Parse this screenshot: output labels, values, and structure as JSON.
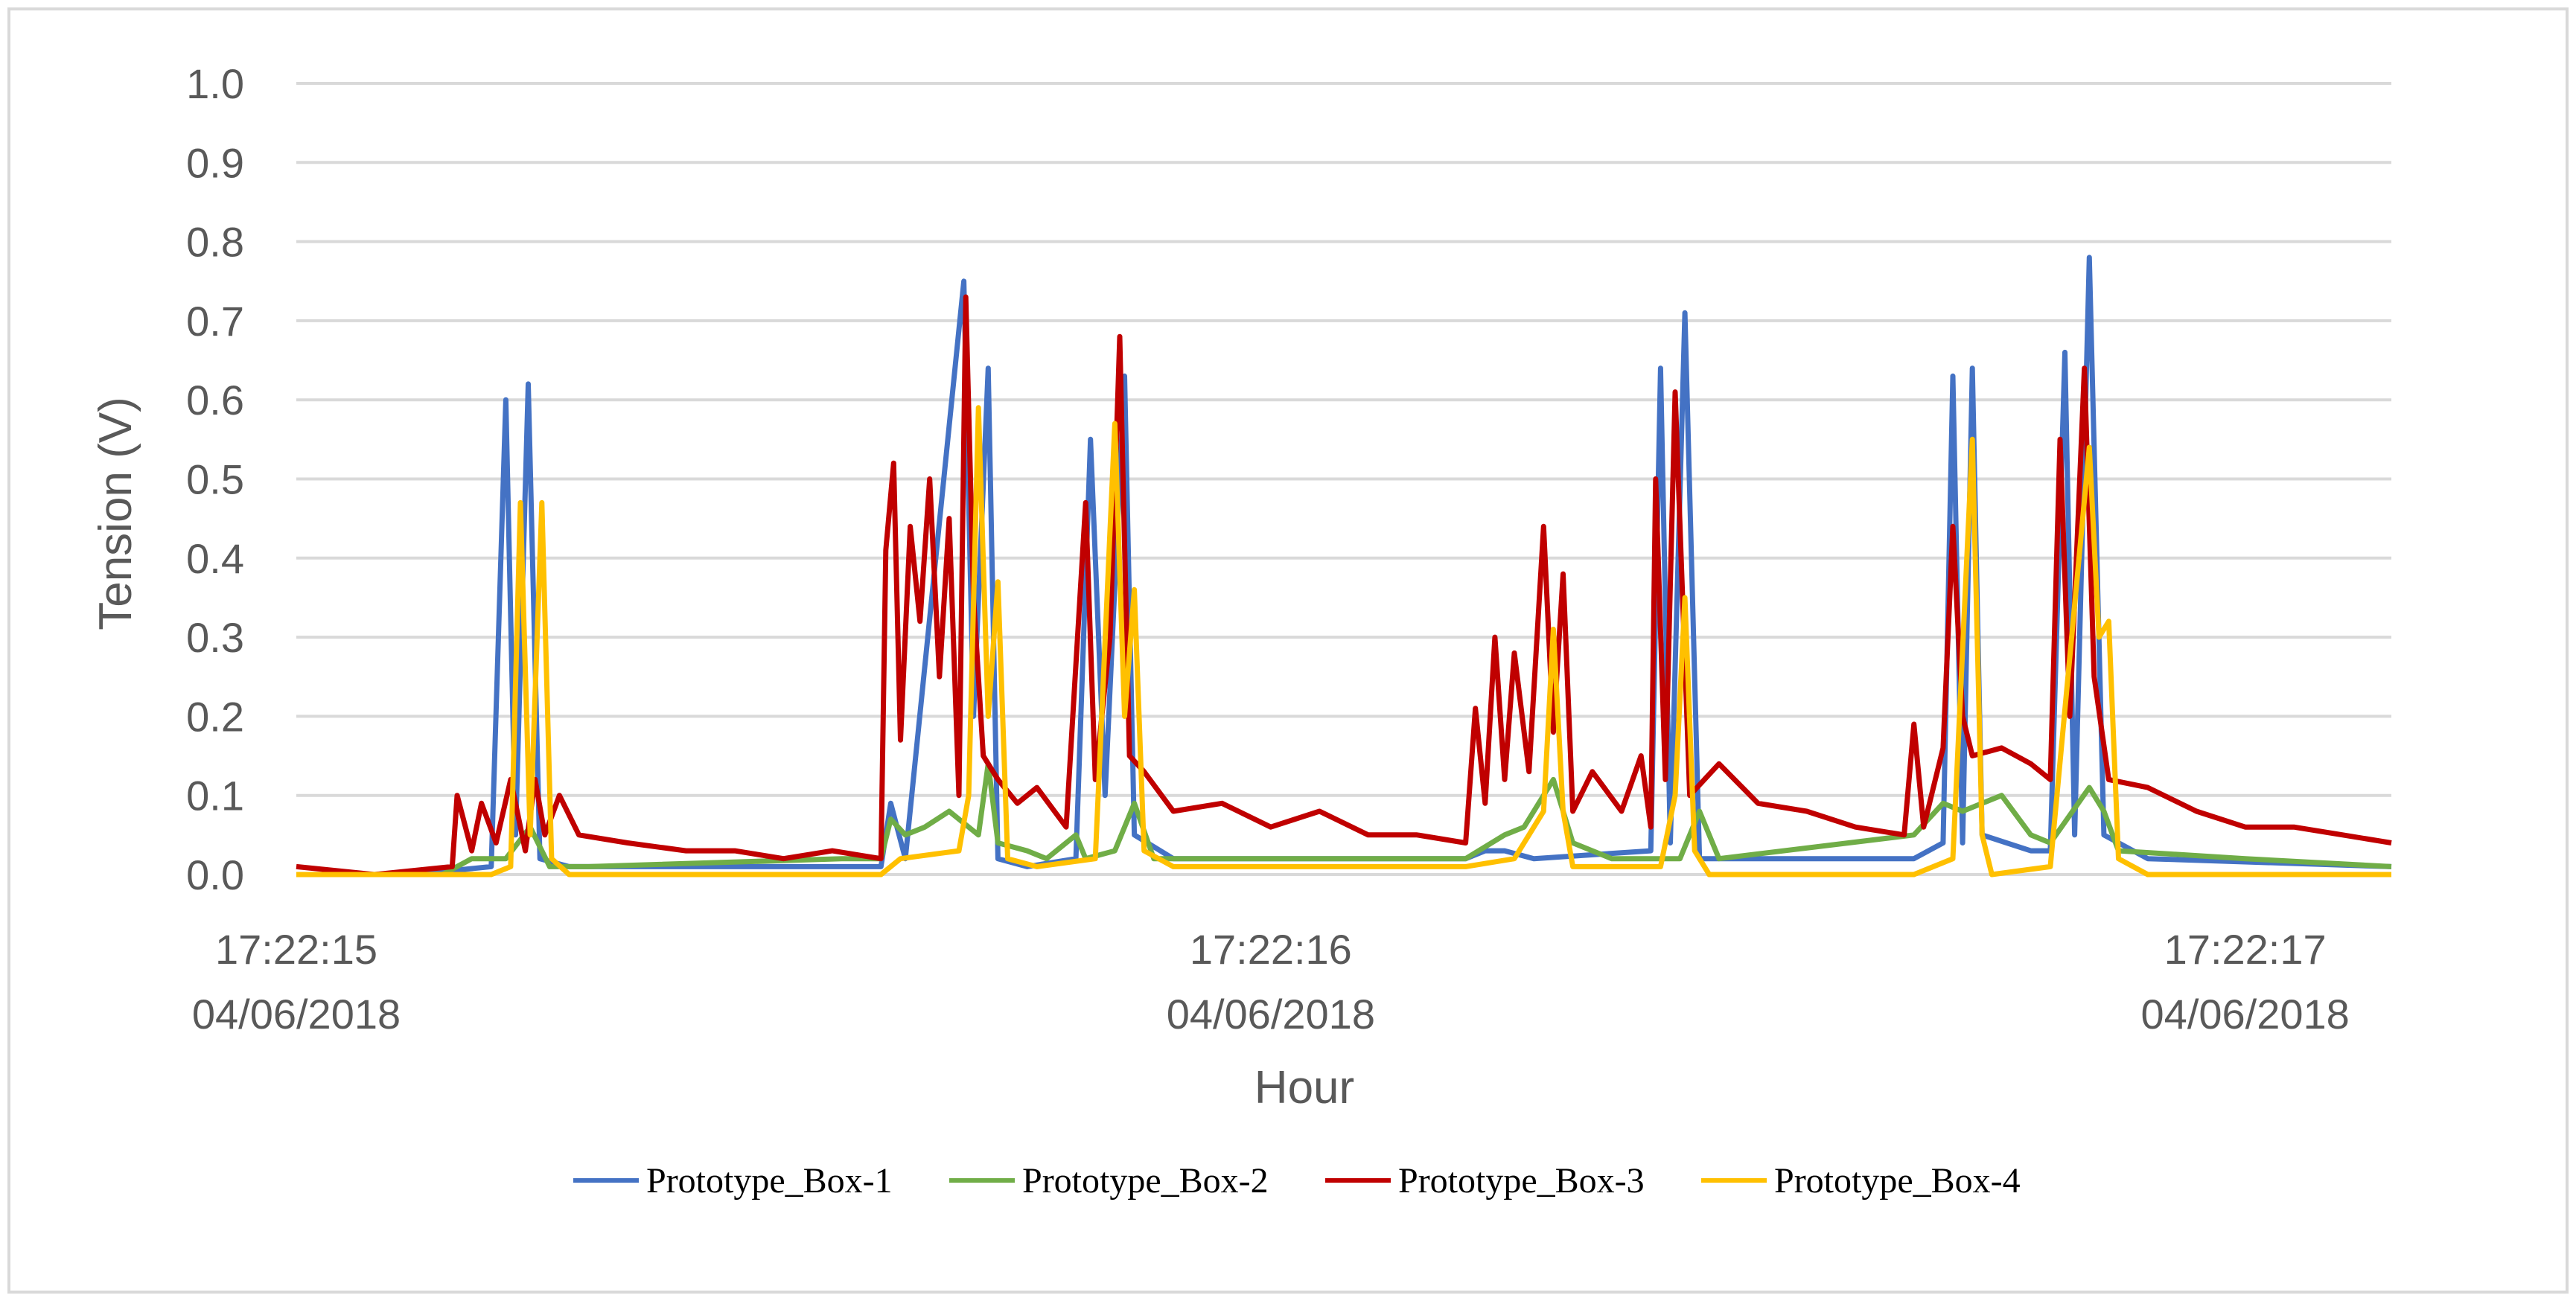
{
  "chart_data": {
    "type": "line",
    "ylabel": "Tension (V)",
    "xlabel": "Hour",
    "ylim": [
      0,
      1.0
    ],
    "yticks": [
      "0.0",
      "0.1",
      "0.2",
      "0.3",
      "0.4",
      "0.5",
      "0.6",
      "0.7",
      "0.8",
      "0.9",
      "1.0"
    ],
    "xlim": [
      0,
      2.15
    ],
    "xticks": [
      {
        "x": 0,
        "line1": "17:22:15",
        "line2": "04/06/2018"
      },
      {
        "x": 1,
        "line1": "17:22:16",
        "line2": "04/06/2018"
      },
      {
        "x": 2,
        "line1": "17:22:17",
        "line2": "04/06/2018"
      }
    ],
    "grid": true,
    "legend_position": "bottom",
    "series": [
      {
        "name": "Prototype_Box-1",
        "color": "#4472c4",
        "points": [
          [
            0,
            0.0
          ],
          [
            0.12,
            0.0
          ],
          [
            0.2,
            0.01
          ],
          [
            0.215,
            0.6
          ],
          [
            0.225,
            0.05
          ],
          [
            0.238,
            0.62
          ],
          [
            0.25,
            0.02
          ],
          [
            0.28,
            0.01
          ],
          [
            0.6,
            0.01
          ],
          [
            0.61,
            0.09
          ],
          [
            0.625,
            0.02
          ],
          [
            0.685,
            0.75
          ],
          [
            0.695,
            0.2
          ],
          [
            0.71,
            0.64
          ],
          [
            0.72,
            0.02
          ],
          [
            0.75,
            0.01
          ],
          [
            0.8,
            0.02
          ],
          [
            0.815,
            0.55
          ],
          [
            0.83,
            0.1
          ],
          [
            0.85,
            0.63
          ],
          [
            0.86,
            0.05
          ],
          [
            0.9,
            0.02
          ],
          [
            1.2,
            0.02
          ],
          [
            1.22,
            0.03
          ],
          [
            1.24,
            0.03
          ],
          [
            1.27,
            0.02
          ],
          [
            1.39,
            0.03
          ],
          [
            1.4,
            0.64
          ],
          [
            1.41,
            0.04
          ],
          [
            1.425,
            0.71
          ],
          [
            1.44,
            0.02
          ],
          [
            1.66,
            0.02
          ],
          [
            1.69,
            0.04
          ],
          [
            1.7,
            0.63
          ],
          [
            1.71,
            0.04
          ],
          [
            1.72,
            0.64
          ],
          [
            1.73,
            0.05
          ],
          [
            1.78,
            0.03
          ],
          [
            1.8,
            0.03
          ],
          [
            1.815,
            0.66
          ],
          [
            1.825,
            0.05
          ],
          [
            1.84,
            0.78
          ],
          [
            1.855,
            0.05
          ],
          [
            1.9,
            0.02
          ],
          [
            2.15,
            0.01
          ]
        ]
      },
      {
        "name": "Prototype_Box-2",
        "color": "#70ad47",
        "points": [
          [
            0,
            0.0
          ],
          [
            0.15,
            0.0
          ],
          [
            0.18,
            0.02
          ],
          [
            0.215,
            0.02
          ],
          [
            0.24,
            0.06
          ],
          [
            0.26,
            0.01
          ],
          [
            0.3,
            0.01
          ],
          [
            0.56,
            0.02
          ],
          [
            0.6,
            0.02
          ],
          [
            0.61,
            0.07
          ],
          [
            0.625,
            0.05
          ],
          [
            0.645,
            0.06
          ],
          [
            0.67,
            0.08
          ],
          [
            0.7,
            0.05
          ],
          [
            0.71,
            0.14
          ],
          [
            0.72,
            0.04
          ],
          [
            0.75,
            0.03
          ],
          [
            0.77,
            0.02
          ],
          [
            0.8,
            0.05
          ],
          [
            0.81,
            0.02
          ],
          [
            0.84,
            0.03
          ],
          [
            0.86,
            0.09
          ],
          [
            0.88,
            0.02
          ],
          [
            0.95,
            0.02
          ],
          [
            1.2,
            0.02
          ],
          [
            1.24,
            0.05
          ],
          [
            1.26,
            0.06
          ],
          [
            1.29,
            0.12
          ],
          [
            1.31,
            0.04
          ],
          [
            1.35,
            0.02
          ],
          [
            1.42,
            0.02
          ],
          [
            1.44,
            0.08
          ],
          [
            1.46,
            0.02
          ],
          [
            1.66,
            0.05
          ],
          [
            1.69,
            0.09
          ],
          [
            1.71,
            0.08
          ],
          [
            1.75,
            0.1
          ],
          [
            1.78,
            0.05
          ],
          [
            1.8,
            0.04
          ],
          [
            1.84,
            0.11
          ],
          [
            1.855,
            0.08
          ],
          [
            1.87,
            0.03
          ],
          [
            2.0,
            0.02
          ],
          [
            2.15,
            0.01
          ]
        ]
      },
      {
        "name": "Prototype_Box-3",
        "color": "#c00000",
        "points": [
          [
            0,
            0.01
          ],
          [
            0.08,
            0.0
          ],
          [
            0.16,
            0.01
          ],
          [
            0.165,
            0.1
          ],
          [
            0.18,
            0.03
          ],
          [
            0.19,
            0.09
          ],
          [
            0.205,
            0.04
          ],
          [
            0.22,
            0.12
          ],
          [
            0.235,
            0.03
          ],
          [
            0.245,
            0.12
          ],
          [
            0.255,
            0.05
          ],
          [
            0.27,
            0.1
          ],
          [
            0.29,
            0.05
          ],
          [
            0.34,
            0.04
          ],
          [
            0.4,
            0.03
          ],
          [
            0.45,
            0.03
          ],
          [
            0.5,
            0.02
          ],
          [
            0.55,
            0.03
          ],
          [
            0.6,
            0.02
          ],
          [
            0.605,
            0.41
          ],
          [
            0.613,
            0.52
          ],
          [
            0.62,
            0.17
          ],
          [
            0.63,
            0.44
          ],
          [
            0.64,
            0.32
          ],
          [
            0.65,
            0.5
          ],
          [
            0.66,
            0.25
          ],
          [
            0.67,
            0.45
          ],
          [
            0.68,
            0.1
          ],
          [
            0.687,
            0.73
          ],
          [
            0.695,
            0.35
          ],
          [
            0.705,
            0.15
          ],
          [
            0.72,
            0.12
          ],
          [
            0.74,
            0.09
          ],
          [
            0.76,
            0.11
          ],
          [
            0.79,
            0.06
          ],
          [
            0.81,
            0.47
          ],
          [
            0.82,
            0.12
          ],
          [
            0.835,
            0.3
          ],
          [
            0.845,
            0.68
          ],
          [
            0.855,
            0.15
          ],
          [
            0.87,
            0.13
          ],
          [
            0.9,
            0.08
          ],
          [
            0.95,
            0.09
          ],
          [
            1.0,
            0.06
          ],
          [
            1.05,
            0.08
          ],
          [
            1.1,
            0.05
          ],
          [
            1.15,
            0.05
          ],
          [
            1.2,
            0.04
          ],
          [
            1.21,
            0.21
          ],
          [
            1.22,
            0.09
          ],
          [
            1.23,
            0.3
          ],
          [
            1.24,
            0.12
          ],
          [
            1.25,
            0.28
          ],
          [
            1.265,
            0.13
          ],
          [
            1.28,
            0.44
          ],
          [
            1.29,
            0.18
          ],
          [
            1.3,
            0.38
          ],
          [
            1.31,
            0.08
          ],
          [
            1.33,
            0.13
          ],
          [
            1.36,
            0.08
          ],
          [
            1.38,
            0.15
          ],
          [
            1.39,
            0.06
          ],
          [
            1.395,
            0.5
          ],
          [
            1.405,
            0.12
          ],
          [
            1.415,
            0.61
          ],
          [
            1.43,
            0.1
          ],
          [
            1.46,
            0.14
          ],
          [
            1.5,
            0.09
          ],
          [
            1.55,
            0.08
          ],
          [
            1.6,
            0.06
          ],
          [
            1.65,
            0.05
          ],
          [
            1.66,
            0.19
          ],
          [
            1.67,
            0.06
          ],
          [
            1.69,
            0.16
          ],
          [
            1.7,
            0.44
          ],
          [
            1.71,
            0.2
          ],
          [
            1.72,
            0.15
          ],
          [
            1.75,
            0.16
          ],
          [
            1.78,
            0.14
          ],
          [
            1.8,
            0.12
          ],
          [
            1.81,
            0.55
          ],
          [
            1.82,
            0.2
          ],
          [
            1.835,
            0.64
          ],
          [
            1.845,
            0.25
          ],
          [
            1.86,
            0.12
          ],
          [
            1.9,
            0.11
          ],
          [
            1.95,
            0.08
          ],
          [
            2.0,
            0.06
          ],
          [
            2.05,
            0.06
          ],
          [
            2.1,
            0.05
          ],
          [
            2.15,
            0.04
          ]
        ]
      },
      {
        "name": "Prototype_Box-4",
        "color": "#ffc000",
        "points": [
          [
            0,
            0.0
          ],
          [
            0.2,
            0.0
          ],
          [
            0.22,
            0.01
          ],
          [
            0.23,
            0.47
          ],
          [
            0.24,
            0.05
          ],
          [
            0.252,
            0.47
          ],
          [
            0.262,
            0.02
          ],
          [
            0.28,
            0.0
          ],
          [
            0.6,
            0.0
          ],
          [
            0.62,
            0.02
          ],
          [
            0.68,
            0.03
          ],
          [
            0.69,
            0.1
          ],
          [
            0.7,
            0.59
          ],
          [
            0.71,
            0.2
          ],
          [
            0.72,
            0.37
          ],
          [
            0.73,
            0.02
          ],
          [
            0.76,
            0.01
          ],
          [
            0.82,
            0.02
          ],
          [
            0.84,
            0.57
          ],
          [
            0.85,
            0.2
          ],
          [
            0.86,
            0.36
          ],
          [
            0.87,
            0.03
          ],
          [
            0.9,
            0.01
          ],
          [
            1.2,
            0.01
          ],
          [
            1.25,
            0.02
          ],
          [
            1.28,
            0.08
          ],
          [
            1.29,
            0.31
          ],
          [
            1.3,
            0.08
          ],
          [
            1.31,
            0.01
          ],
          [
            1.4,
            0.01
          ],
          [
            1.415,
            0.1
          ],
          [
            1.425,
            0.35
          ],
          [
            1.435,
            0.03
          ],
          [
            1.45,
            0.0
          ],
          [
            1.66,
            0.0
          ],
          [
            1.7,
            0.02
          ],
          [
            1.72,
            0.55
          ],
          [
            1.73,
            0.05
          ],
          [
            1.74,
            0.0
          ],
          [
            1.8,
            0.01
          ],
          [
            1.84,
            0.54
          ],
          [
            1.85,
            0.3
          ],
          [
            1.86,
            0.32
          ],
          [
            1.87,
            0.02
          ],
          [
            1.9,
            0.0
          ],
          [
            2.15,
            0.0
          ]
        ]
      }
    ]
  }
}
